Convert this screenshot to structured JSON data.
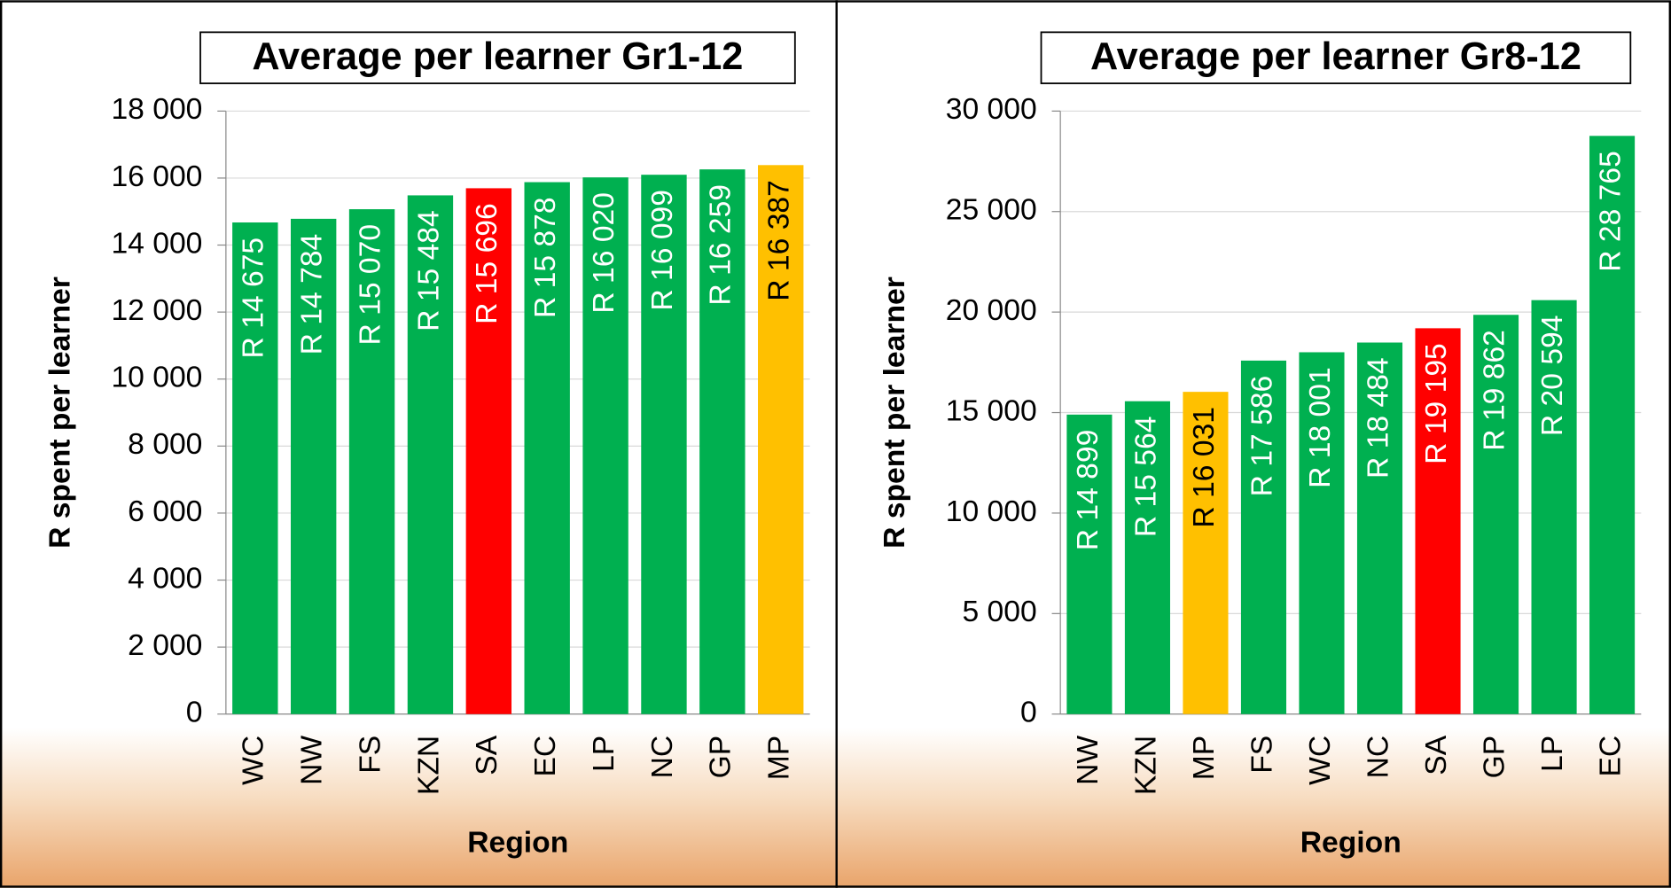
{
  "chart_data": [
    {
      "type": "bar",
      "title": "Average per learner Gr1-12",
      "y_label": "R spent per learner",
      "x_label": "Region",
      "categories": [
        "WC",
        "NW",
        "FS",
        "KZN",
        "SA",
        "EC",
        "LP",
        "NC",
        "GP",
        "MP"
      ],
      "values": [
        14675,
        14784,
        15070,
        15484,
        15696,
        15878,
        16020,
        16099,
        16259,
        16387
      ],
      "value_labels": [
        "R 14 675",
        "R 14 784",
        "R 15 070",
        "R 15 484",
        "R 15 696",
        "R 15 878",
        "R 16 020",
        "R 16 099",
        "R 16 259",
        "R 16 387"
      ],
      "colors": [
        "#00b050",
        "#00b050",
        "#00b050",
        "#00b050",
        "#ff0000",
        "#00b050",
        "#00b050",
        "#00b050",
        "#00b050",
        "#ffc000"
      ],
      "value_label_colors": [
        "#ffffff",
        "#ffffff",
        "#ffffff",
        "#ffffff",
        "#ffffff",
        "#ffffff",
        "#ffffff",
        "#ffffff",
        "#ffffff",
        "#000000"
      ],
      "ylim": [
        0,
        18000
      ],
      "yticks": [
        0,
        {
          "value": 2000,
          "label": "2 000"
        },
        {
          "value": 4000,
          "label": "4 000"
        },
        {
          "value": 6000,
          "label": "6 000"
        },
        {
          "value": 8000,
          "label": "8 000"
        },
        {
          "value": 10000,
          "label": "10 000"
        },
        {
          "value": 12000,
          "label": "12 000"
        },
        {
          "value": 14000,
          "label": "14 000"
        },
        {
          "value": 16000,
          "label": "16 000"
        },
        {
          "value": 18000,
          "label": "18 000"
        }
      ],
      "grid": true
    },
    {
      "type": "bar",
      "title": "Average per learner Gr8-12",
      "y_label": "R spent per learner",
      "x_label": "Region",
      "categories": [
        "NW",
        "KZN",
        "MP",
        "FS",
        "WC",
        "NC",
        "SA",
        "GP",
        "LP",
        "EC"
      ],
      "values": [
        14899,
        15564,
        16031,
        17586,
        18001,
        18484,
        19195,
        19862,
        20594,
        28765
      ],
      "value_labels": [
        "R 14 899",
        "R 15 564",
        "R 16 031",
        "R 17 586",
        "R 18 001",
        "R 18 484",
        "R 19 195",
        "R 19 862",
        "R 20 594",
        "R 28 765"
      ],
      "colors": [
        "#00b050",
        "#00b050",
        "#ffc000",
        "#00b050",
        "#00b050",
        "#00b050",
        "#ff0000",
        "#00b050",
        "#00b050",
        "#00b050"
      ],
      "value_label_colors": [
        "#ffffff",
        "#ffffff",
        "#000000",
        "#ffffff",
        "#ffffff",
        "#ffffff",
        "#ffffff",
        "#ffffff",
        "#ffffff",
        "#ffffff"
      ],
      "ylim": [
        0,
        30000
      ],
      "yticks": [
        0,
        {
          "value": 5000,
          "label": "5 000"
        },
        {
          "value": 10000,
          "label": "10 000"
        },
        {
          "value": 15000,
          "label": "15 000"
        },
        {
          "value": 20000,
          "label": "20 000"
        },
        {
          "value": 25000,
          "label": "25 000"
        },
        {
          "value": 30000,
          "label": "30 000"
        }
      ],
      "grid": true
    }
  ]
}
